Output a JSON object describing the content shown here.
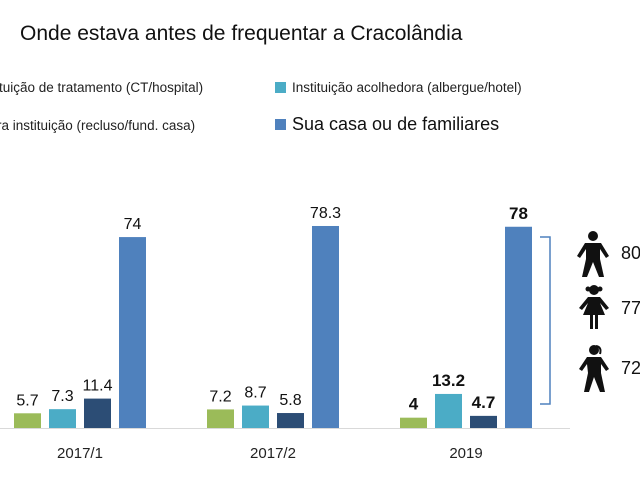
{
  "chart_data": {
    "type": "bar",
    "title": "Onde estava antes de frequentar a Cracolândia",
    "xlabel": "",
    "ylabel": "",
    "ylim": [
      0,
      80
    ],
    "grid": false,
    "legend_position": "top",
    "categories": [
      "2017/1",
      "2017/2",
      "2019"
    ],
    "series": [
      {
        "name": "Instituição de tratamento (CT/hospital)",
        "legend_visible_text": "ituição de tratamento (CT/hospital)",
        "color": "#9bbb59",
        "values": [
          5.7,
          7.2,
          4
        ],
        "labels": [
          "5.7",
          "7.2",
          "4"
        ]
      },
      {
        "name": "Instituição acolhedora (albergue/hotel)",
        "legend_visible_text": "Instituição acolhedora (albergue/hotel)",
        "color": "#4bacc6",
        "values": [
          7.3,
          8.7,
          13.2
        ],
        "labels": [
          "7.3",
          "8.7",
          "13.2"
        ]
      },
      {
        "name": "Outra instituição (recluso/fund. casa)",
        "legend_visible_text": "ra instituição (recluso/fund. casa)",
        "color": "#2c4d75",
        "values": [
          11.4,
          5.8,
          4.7
        ],
        "labels": [
          "11.4",
          "5.8",
          "4.7"
        ]
      },
      {
        "name": "Sua casa ou de familiares",
        "legend_visible_text": "Sua casa ou de familiares",
        "color": "#4f81bd",
        "values": [
          74,
          78.3,
          78
        ],
        "labels": [
          "74",
          "78.3",
          "78"
        ]
      }
    ],
    "bold_labels_category": "2019",
    "annotation": {
      "bracket_color": "#4f81bd",
      "breakdown": [
        {
          "icon": "man-icon",
          "label": "80"
        },
        {
          "icon": "woman-icon",
          "label": "77"
        },
        {
          "icon": "girl-icon",
          "label": "72"
        }
      ]
    }
  }
}
